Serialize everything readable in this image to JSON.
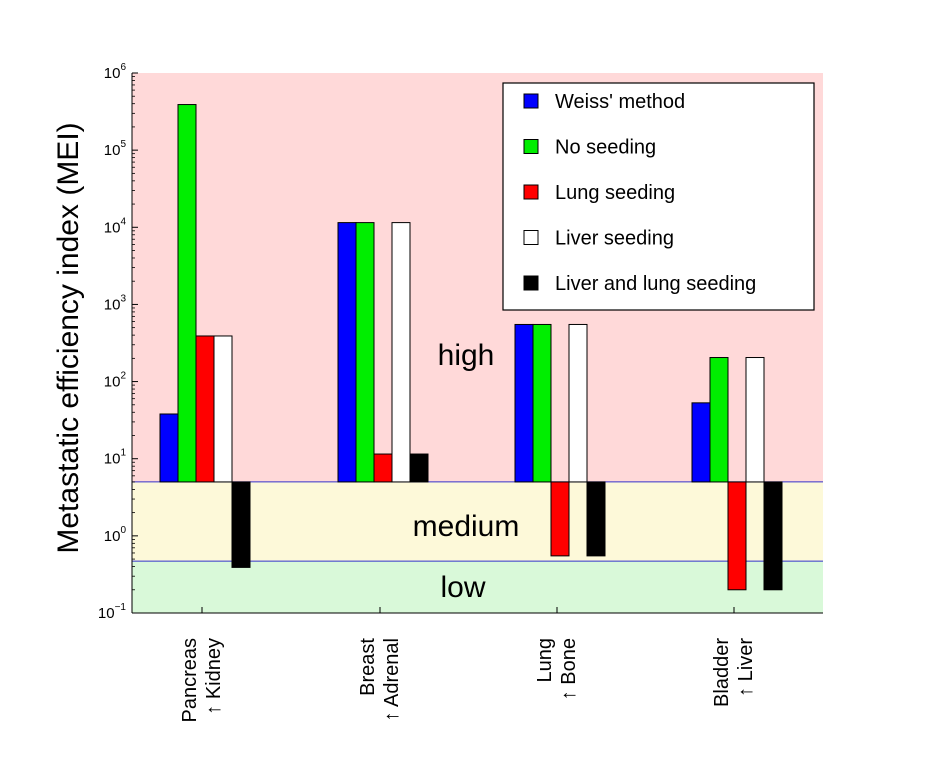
{
  "chart_data": {
    "type": "bar",
    "ylabel": "Metastatic efficiency index (MEI)",
    "yscale": "log",
    "ylim": [
      0.1,
      1000000
    ],
    "y_ticks": [
      {
        "base": "10",
        "exp": "−1",
        "value": 0.1
      },
      {
        "base": "10",
        "exp": "0",
        "value": 1
      },
      {
        "base": "10",
        "exp": "1",
        "value": 10
      },
      {
        "base": "10",
        "exp": "2",
        "value": 100
      },
      {
        "base": "10",
        "exp": "3",
        "value": 1000
      },
      {
        "base": "10",
        "exp": "4",
        "value": 10000
      },
      {
        "base": "10",
        "exp": "5",
        "value": 100000
      },
      {
        "base": "10",
        "exp": "6",
        "value": 1000000
      }
    ],
    "baseline": 5,
    "regions": [
      {
        "name": "high",
        "label": "high",
        "from": 5,
        "to": 1000000,
        "color": "#ffd9d9"
      },
      {
        "name": "medium",
        "label": "medium",
        "from": 0.47,
        "to": 5,
        "color": "#fdf9d9"
      },
      {
        "name": "low",
        "label": "low",
        "from": 0.1,
        "to": 0.47,
        "color": "#d9f9d9"
      }
    ],
    "categories": [
      {
        "line1": "Pancreas",
        "line2": "↑ Kidney"
      },
      {
        "line1": "Breast",
        "line2": "↑ Adrenal"
      },
      {
        "line1": "Lung",
        "line2": "↑ Bone"
      },
      {
        "line1": "Bladder",
        "line2": "↑ Liver"
      }
    ],
    "series": [
      {
        "name": "Weiss' method",
        "color": "#0000ff",
        "values": [
          38,
          11500,
          550,
          53
        ]
      },
      {
        "name": "No seeding",
        "color": "#00ee00",
        "values": [
          390000,
          11500,
          550,
          205
        ]
      },
      {
        "name": "Lung seeding",
        "color": "#ff0000",
        "values": [
          390,
          11.5,
          0.55,
          0.2
        ]
      },
      {
        "name": "Liver seeding",
        "color": "#ffffff",
        "values": [
          390,
          11500,
          550,
          205
        ]
      },
      {
        "name": "Liver and lung seeding",
        "color": "#000000",
        "values": [
          0.39,
          11.5,
          0.55,
          0.2
        ]
      }
    ],
    "legend_position": "top-right"
  }
}
